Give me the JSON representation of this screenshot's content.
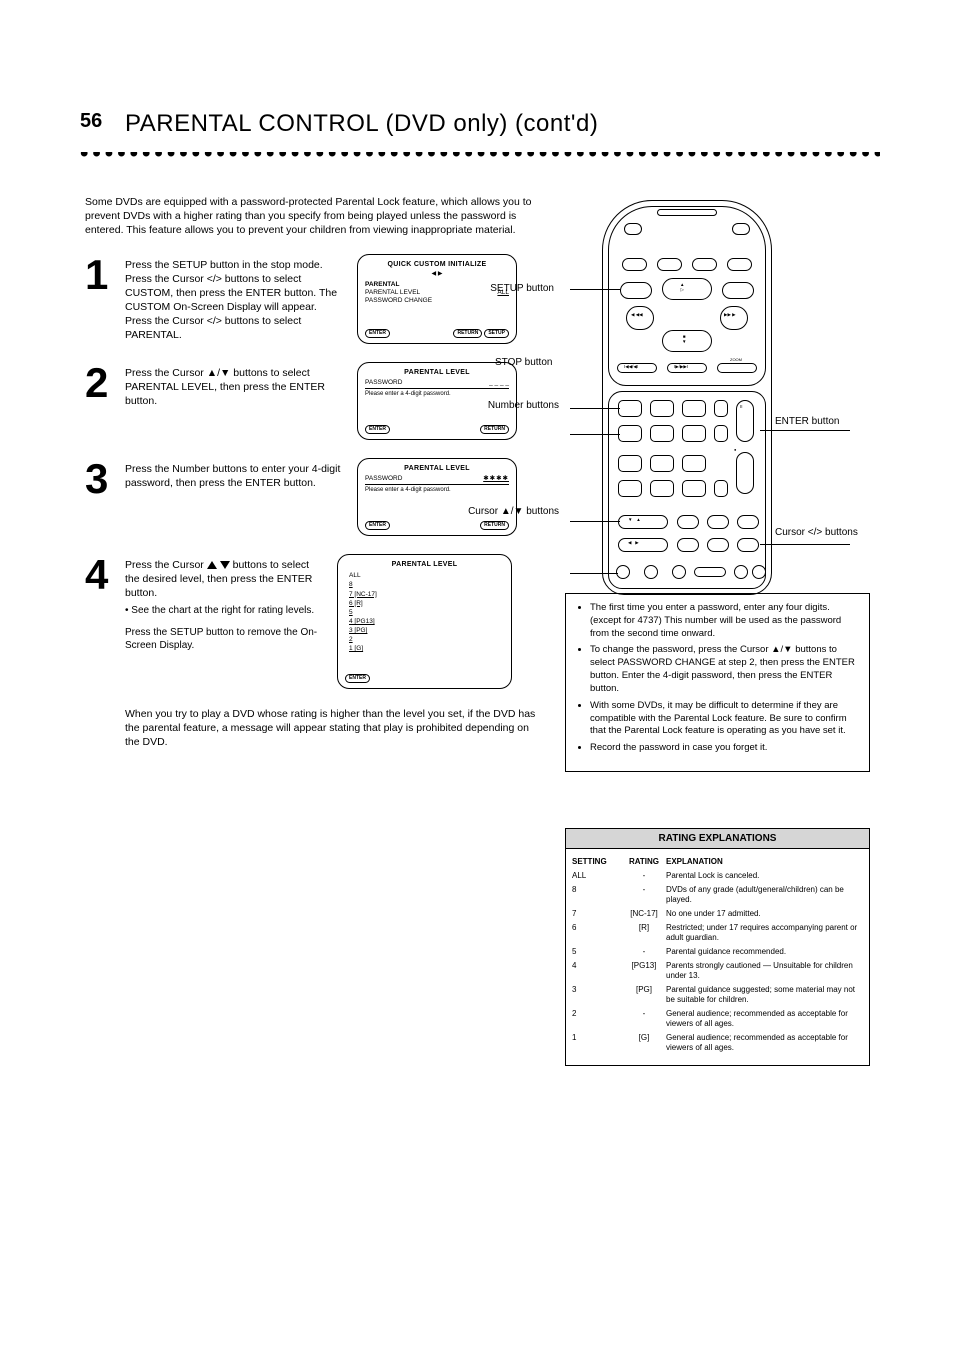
{
  "page": {
    "number": "56",
    "heading": "PARENTAL CONTROL (DVD only) (cont'd)"
  },
  "intro": "Some DVDs are equipped with a password-protected Parental Lock feature, which allows you to prevent DVDs with a higher rating than you specify from being played unless the password is entered. This feature allows you to prevent your children from viewing inappropriate material.",
  "steps": {
    "s1": {
      "num": "1",
      "text": "Press the SETUP button in the stop mode. Press the Cursor </> buttons to select CUSTOM, then press the ENTER button. The CUSTOM On-Screen Display will appear. Press the Cursor </> buttons to select PARENTAL."
    },
    "s2": {
      "num": "2",
      "text": "Press the Cursor ▲/▼ buttons to select PARENTAL LEVEL, then press the ENTER button."
    },
    "s3": {
      "num": "3",
      "text": "Press the Number buttons to enter your 4-digit password, then press the ENTER button."
    },
    "s4": {
      "num": "4",
      "text_a": "Press the Cursor ",
      "text_b": " buttons to select the desired level, then press the ENTER button.",
      "text_c": "• See the chart at the right for rating levels.",
      "note": "Press the SETUP button to remove the On-Screen Display.",
      "trailer": "When you try to play a DVD whose rating is higher than the level you set, if the DVD has the parental feature, a message will appear stating that play is prohibited depending on the DVD."
    }
  },
  "screen1": {
    "title": "QUICK   CUSTOM   INITIALIZE",
    "iconrow": "◀  ▶",
    "section": "PARENTAL",
    "line1_l": "PARENTAL LEVEL",
    "line1_r": "ALL",
    "line2_l": "PASSWORD CHANGE",
    "foot": [
      {
        "pill": "ENTER",
        "label": ""
      },
      {
        "pill": "RETURN",
        "label": ""
      },
      {
        "pill": "SETUP",
        "label": ""
      }
    ]
  },
  "screen2": {
    "title": "PARENTAL LEVEL",
    "line1_l": "PASSWORD",
    "line1_r": "_ _ _ _",
    "body": "Please enter a 4-digit password.",
    "foot": [
      {
        "pill": "ENTER",
        "label": ""
      },
      {
        "pill": "RETURN",
        "label": ""
      }
    ]
  },
  "screen3": {
    "title": "PARENTAL LEVEL",
    "line1_l": "PASSWORD",
    "line1_r": "✱✱✱✱",
    "body": "Please enter a 4-digit password.",
    "foot": [
      {
        "pill": "ENTER",
        "label": ""
      },
      {
        "pill": "RETURN",
        "label": ""
      }
    ]
  },
  "screen4": {
    "title": "PARENTAL LEVEL",
    "items": [
      {
        "l": "ALL",
        "r": ""
      },
      {
        "l": "8",
        "r": ""
      },
      {
        "l": "7 [NC-17]",
        "r": ""
      },
      {
        "l": "6 [R]",
        "r": ""
      },
      {
        "l": "5",
        "r": ""
      },
      {
        "l": "4 [PG13]",
        "r": ""
      },
      {
        "l": "3 [PG]",
        "r": ""
      },
      {
        "l": "2",
        "r": ""
      },
      {
        "l": "1 [G]",
        "r": ""
      }
    ],
    "foot": [
      {
        "pill": "ENTER",
        "label": ""
      }
    ]
  },
  "remote_labels": {
    "setup": "SETUP button",
    "number": "Number buttons",
    "enter": "ENTER button",
    "updown": "Cursor ▲/▼ buttons",
    "lr": "Cursor </> buttons",
    "stop": "STOP button"
  },
  "notes": {
    "bullets": [
      "The first time you enter a password, enter any four digits. (except for 4737) This number will be used as the password from the second time onward.",
      "To change the password, press the Cursor ▲/▼ buttons to select PASSWORD CHANGE at step 2, then press the ENTER button. Enter the 4-digit password, then press the ENTER button.",
      "With some DVDs, it may be difficult to determine if they are compatible with the Parental Lock feature. Be sure to confirm that the Parental Lock feature is operating as you have set it.",
      "Record the password in case you forget it."
    ]
  },
  "ratings": {
    "head": "RATING EXPLANATIONS",
    "columns": [
      "SETTING",
      "RATING",
      "EXPLANATION"
    ],
    "rows": [
      {
        "c1": "ALL",
        "c2": "-",
        "c3": "Parental Lock is canceled."
      },
      {
        "c1": "8",
        "c2": "-",
        "c3": "DVDs of any grade (adult/general/children) can be played."
      },
      {
        "c1": "7",
        "c2": "[NC-17]",
        "c3": "No one under 17 admitted."
      },
      {
        "c1": "6",
        "c2": "[R]",
        "c3": "Restricted; under 17 requires accompanying parent or adult guardian."
      },
      {
        "c1": "5",
        "c2": "-",
        "c3": "Parental guidance recommended."
      },
      {
        "c1": "4",
        "c2": "[PG13]",
        "c3": "Parents strongly cautioned — Unsuitable for children under 13."
      },
      {
        "c1": "3",
        "c2": "[PG]",
        "c3": "Parental guidance suggested; some material may not be suitable for children."
      },
      {
        "c1": "2",
        "c2": "-",
        "c3": "General audience; recommended as acceptable for viewers of all ages."
      },
      {
        "c1": "1",
        "c2": "[G]",
        "c3": "General audience; recommended as acceptable for viewers of all ages."
      }
    ]
  },
  "colors": {
    "black": "#000000",
    "white": "#ffffff",
    "grayfill": "#d6d6d6"
  }
}
